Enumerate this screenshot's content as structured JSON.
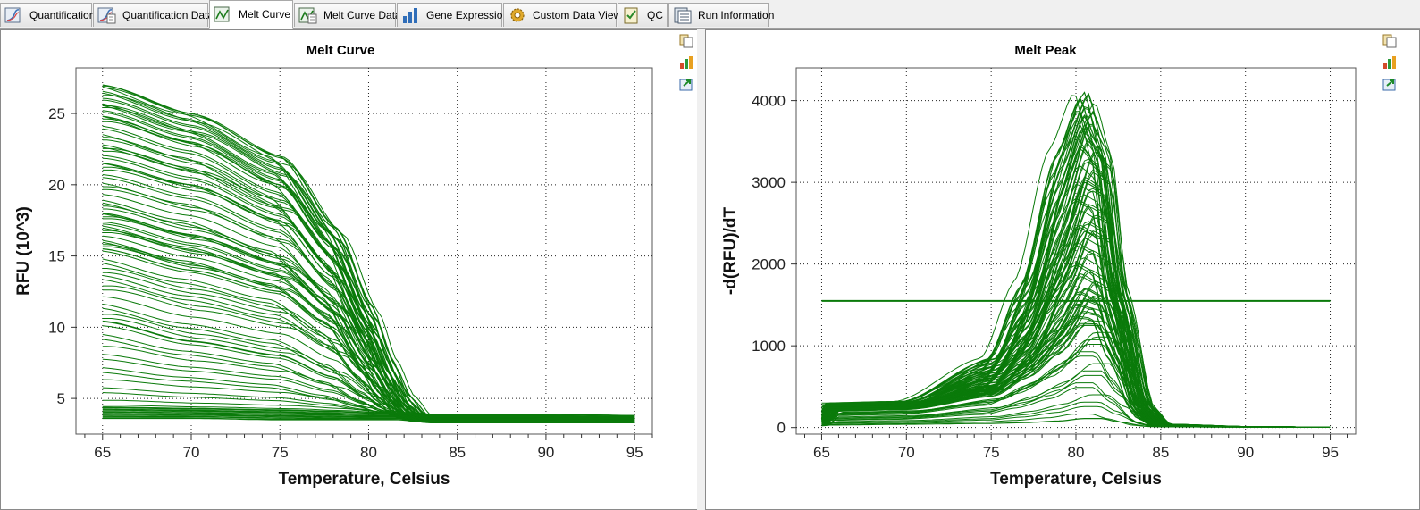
{
  "tabs": [
    {
      "label": "Quantification",
      "icon": "quantification-icon",
      "active": false
    },
    {
      "label": "Quantification Data",
      "icon": "quantification-data-icon",
      "active": false
    },
    {
      "label": "Melt Curve",
      "icon": "melt-curve-icon",
      "active": true
    },
    {
      "label": "Melt Curve Data",
      "icon": "melt-curve-data-icon",
      "active": false
    },
    {
      "label": "Gene Expression",
      "icon": "gene-expression-icon",
      "active": false
    },
    {
      "label": "Custom Data View",
      "icon": "custom-data-view-gear-icon",
      "active": false
    },
    {
      "label": "QC",
      "icon": "qc-checklist-icon",
      "active": false
    },
    {
      "label": "Run Information",
      "icon": "run-information-icon",
      "active": false
    }
  ],
  "side_icons": [
    "copy-icon",
    "chart-options-icon",
    "export-icon"
  ],
  "colors": {
    "series": "#0a7a0a",
    "grid": "#222222",
    "panel_bg": "#ffffff"
  },
  "chart_data": [
    {
      "type": "line",
      "title": "Melt Curve",
      "xlabel": "Temperature, Celsius",
      "ylabel": "RFU (10^3)",
      "xlim": [
        63.5,
        96
      ],
      "ylim": [
        2.5,
        28.2
      ],
      "xticks": [
        65,
        70,
        75,
        80,
        85,
        90,
        95
      ],
      "yticks": [
        5,
        10,
        15,
        20,
        25
      ],
      "grid": true,
      "legend": "none",
      "series_count": 96,
      "x": [
        65,
        70,
        75,
        78,
        80,
        81,
        82,
        83,
        84,
        85,
        90,
        95
      ],
      "series": [
        {
          "values": [
            27.0,
            25.0,
            22.0,
            17.0,
            11.5,
            8.0,
            5.3,
            3.8,
            3.5,
            3.4,
            3.3,
            3.3
          ]
        },
        {
          "values": [
            24.8,
            23.0,
            20.0,
            15.5,
            10.0,
            7.0,
            4.8,
            3.6,
            3.4,
            3.4,
            3.3,
            3.3
          ]
        },
        {
          "values": [
            21.5,
            20.0,
            17.5,
            13.5,
            9.0,
            6.2,
            4.3,
            3.5,
            3.4,
            3.4,
            3.3,
            3.3
          ]
        },
        {
          "values": [
            18.0,
            16.5,
            14.5,
            11.5,
            7.5,
            5.5,
            4.0,
            3.4,
            3.3,
            3.3,
            3.3,
            3.3
          ]
        },
        {
          "values": [
            15.5,
            14.0,
            12.5,
            10.0,
            6.8,
            5.0,
            3.8,
            3.4,
            3.3,
            3.3,
            3.3,
            3.3
          ]
        },
        {
          "values": [
            10.4,
            9.0,
            8.0,
            6.5,
            5.0,
            4.2,
            3.7,
            3.4,
            3.3,
            3.3,
            3.3,
            3.3
          ]
        },
        {
          "values": [
            4.4,
            4.3,
            4.2,
            4.1,
            4.0,
            4.0,
            4.0,
            3.9,
            3.9,
            3.9,
            3.9,
            3.8
          ]
        },
        {
          "values": [
            3.6,
            3.6,
            3.5,
            3.5,
            3.5,
            3.5,
            3.5,
            3.4,
            3.4,
            3.4,
            3.4,
            3.3
          ]
        }
      ]
    },
    {
      "type": "line",
      "title": "Melt Peak",
      "xlabel": "Temperature, Celsius",
      "ylabel": "-d(RFU)/dT",
      "xlim": [
        63.5,
        96.5
      ],
      "ylim": [
        -80,
        4400
      ],
      "xticks": [
        65,
        70,
        75,
        80,
        85,
        90,
        95
      ],
      "yticks": [
        0,
        1000,
        2000,
        3000,
        4000
      ],
      "grid": true,
      "legend": "none",
      "series_count": 96,
      "threshold": 1550,
      "x": [
        65,
        65.5,
        70,
        75,
        77,
        79,
        80.5,
        81.5,
        82.5,
        84,
        85,
        90,
        95
      ],
      "series": [
        {
          "values": [
            120,
            300,
            320,
            850,
            1800,
            3400,
            4100,
            3300,
            1500,
            200,
            30,
            10,
            5
          ]
        },
        {
          "values": [
            110,
            280,
            300,
            700,
            1400,
            2800,
            3700,
            3400,
            1700,
            250,
            40,
            10,
            5
          ]
        },
        {
          "values": [
            100,
            260,
            280,
            600,
            1100,
            2100,
            3000,
            2900,
            1600,
            240,
            40,
            10,
            5
          ]
        },
        {
          "values": [
            90,
            240,
            260,
            500,
            900,
            1700,
            2400,
            2300,
            1300,
            220,
            35,
            10,
            5
          ]
        },
        {
          "values": [
            80,
            220,
            240,
            450,
            750,
            1200,
            1700,
            1600,
            1000,
            200,
            30,
            10,
            5
          ]
        },
        {
          "values": [
            60,
            200,
            220,
            380,
            600,
            900,
            1250,
            1250,
            800,
            150,
            25,
            10,
            5
          ]
        },
        {
          "values": [
            20,
            30,
            40,
            50,
            60,
            80,
            110,
            110,
            70,
            20,
            10,
            5,
            5
          ]
        }
      ]
    }
  ]
}
